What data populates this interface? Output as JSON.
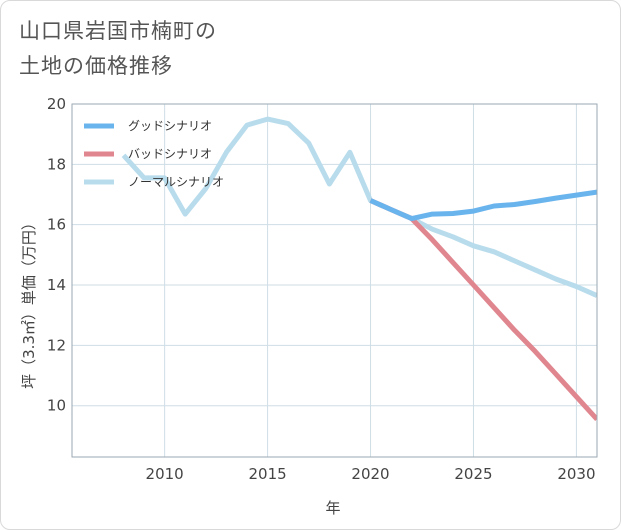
{
  "title_lines": [
    "山口県岩国市楠町の",
    "土地の価格推移"
  ],
  "chart_data": {
    "type": "line",
    "xlabel": "年",
    "ylabel": "坪（3.3㎡）単価（万円）",
    "xlim": [
      2005.5,
      2031
    ],
    "ylim": [
      8.3,
      20
    ],
    "xticks": [
      2010,
      2015,
      2020,
      2025,
      2030
    ],
    "yticks": [
      10,
      12,
      14,
      16,
      18,
      20
    ],
    "series": [
      {
        "name": "グッドシナリオ",
        "color": "#6ab4ee",
        "x": [
          2020,
          2021,
          2022,
          2023,
          2024,
          2025,
          2026,
          2027,
          2028,
          2029,
          2030,
          2031
        ],
        "values": [
          16.8,
          16.5,
          16.2,
          16.35,
          16.37,
          16.45,
          16.62,
          16.67,
          16.77,
          16.88,
          16.98,
          17.08
        ]
      },
      {
        "name": "バッドシナリオ",
        "color": "#e0868f",
        "x": [
          2020,
          2021,
          2022,
          2023,
          2024,
          2025,
          2026,
          2027,
          2028,
          2029,
          2030,
          2031
        ],
        "values": [
          16.8,
          16.5,
          16.2,
          15.5,
          14.75,
          14.0,
          13.25,
          12.5,
          11.8,
          11.05,
          10.3,
          9.55
        ]
      },
      {
        "name": "ノーマルシナリオ",
        "color": "#b8dcec",
        "x": [
          2008,
          2009,
          2010,
          2011,
          2012,
          2013,
          2014,
          2015,
          2016,
          2017,
          2018,
          2019,
          2020,
          2021,
          2022,
          2023,
          2024,
          2025,
          2026,
          2027,
          2028,
          2029,
          2030,
          2031
        ],
        "values": [
          18.3,
          17.55,
          17.55,
          16.35,
          17.2,
          18.4,
          19.3,
          19.5,
          19.35,
          18.7,
          17.35,
          18.4,
          16.8,
          16.5,
          16.2,
          15.85,
          15.6,
          15.3,
          15.1,
          14.8,
          14.5,
          14.2,
          13.95,
          13.65
        ]
      }
    ]
  }
}
